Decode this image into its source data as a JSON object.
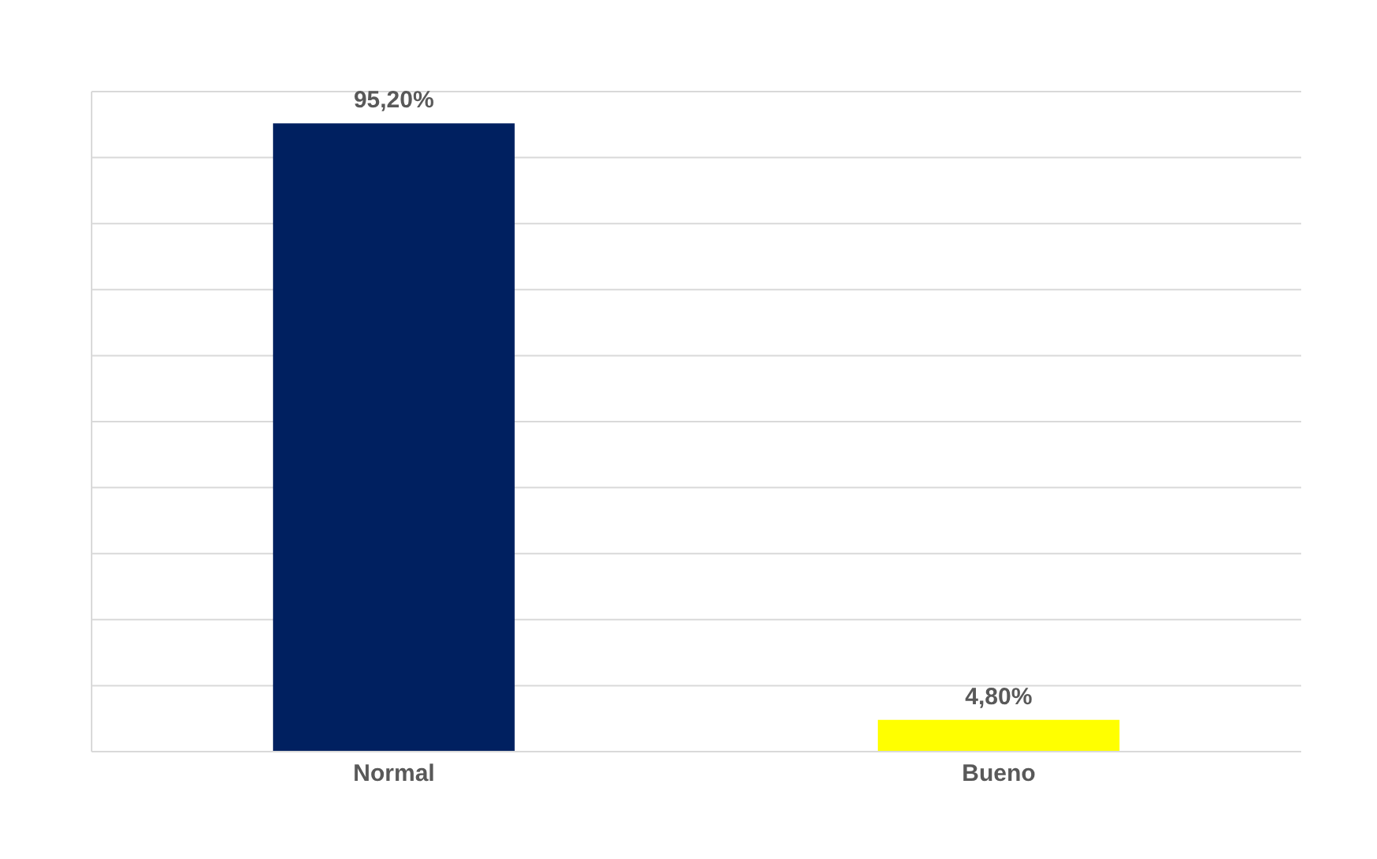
{
  "chart_data": {
    "type": "bar",
    "categories": [
      "Normal",
      "Bueno"
    ],
    "values": [
      95.2,
      4.8
    ],
    "colors": [
      "#002060",
      "#ffff00"
    ],
    "value_labels": [
      "95,20%",
      "4,80%"
    ],
    "ylim": [
      0,
      100
    ],
    "grid": "y",
    "tick_labels": "x",
    "legend": false
  }
}
